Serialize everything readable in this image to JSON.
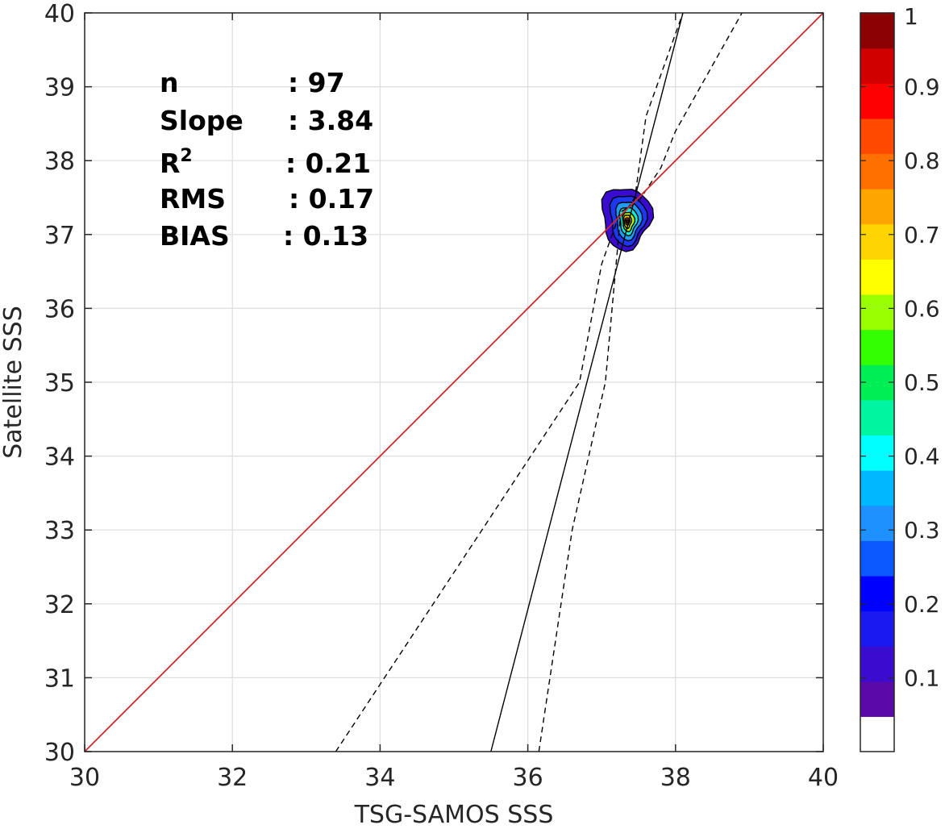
{
  "chart_data": {
    "type": "scatter",
    "subtype": "density-contour-with-regression",
    "title": "",
    "xlabel": "TSG-SAMOS SSS",
    "ylabel": "Satellite SSS",
    "xlim": [
      30,
      40
    ],
    "ylim": [
      30,
      40
    ],
    "xticks": [
      "30",
      "32",
      "34",
      "36",
      "38",
      "40"
    ],
    "yticks": [
      "30",
      "31",
      "32",
      "33",
      "34",
      "35",
      "36",
      "37",
      "38",
      "39",
      "40"
    ],
    "grid": true,
    "stats": [
      {
        "label": "n",
        "value": ": 97"
      },
      {
        "label": "Slope",
        "value": ": 3.84"
      },
      {
        "label": "R",
        "superscript": "2",
        "value": ": 0.21"
      },
      {
        "label": "RMS",
        "value": ": 0.17"
      },
      {
        "label": "BIAS",
        "value": ": 0.13"
      }
    ],
    "one_to_one_line": {
      "x": [
        30,
        40
      ],
      "y": [
        30,
        40
      ],
      "color": "#d62728"
    },
    "regression_line": {
      "x": [
        35.5,
        38.1
      ],
      "y": [
        30,
        40
      ],
      "color": "#000000"
    },
    "confidence_lower": {
      "x": [
        33.4,
        36.7,
        37.0,
        37.25,
        37.5,
        37.8,
        38.0,
        38.9
      ],
      "y": [
        30,
        35.0,
        36.6,
        37.3,
        37.45,
        37.9,
        38.4,
        40.0
      ],
      "dash": true
    },
    "confidence_upper": {
      "x": [
        36.15,
        36.6,
        37.05,
        37.25,
        37.45,
        37.6,
        38.1
      ],
      "y": [
        30,
        33.0,
        35.0,
        37.2,
        37.5,
        38.6,
        40.0
      ],
      "dash": true
    },
    "density_center": {
      "x": 37.35,
      "y": 37.18
    },
    "density_contours": [
      {
        "level": 0.1,
        "color": "#3a0ccf",
        "rx": 0.33,
        "ry": 0.42,
        "dx": -0.02,
        "dy": 0.05
      },
      {
        "level": 0.2,
        "color": "#1c38f0",
        "rx": 0.24,
        "ry": 0.34,
        "dx": 0.0,
        "dy": 0.03
      },
      {
        "level": 0.3,
        "color": "#1f9df5",
        "rx": 0.17,
        "ry": 0.26,
        "dx": 0.01,
        "dy": 0.02
      },
      {
        "level": 0.4,
        "color": "#16e6d2",
        "rx": 0.12,
        "ry": 0.19,
        "dx": 0.01,
        "dy": 0.01
      },
      {
        "level": 0.6,
        "color": "#b2f21f",
        "rx": 0.08,
        "ry": 0.13,
        "dx": 0.01,
        "dy": 0.0
      },
      {
        "level": 0.7,
        "color": "#ffd000",
        "rx": 0.05,
        "ry": 0.09,
        "dx": 0.0,
        "dy": 0.0
      },
      {
        "level": 0.85,
        "color": "#ff5a00",
        "rx": 0.03,
        "ry": 0.05,
        "dx": 0.0,
        "dy": 0.0
      },
      {
        "level": 1.0,
        "color": "#7a0000",
        "rx": 0.015,
        "ry": 0.025,
        "dx": 0.0,
        "dy": 0.0
      }
    ],
    "colorbar": {
      "range": [
        0,
        1
      ],
      "tick_labels": [
        "0.1",
        "0.2",
        "0.3",
        "0.4",
        "0.5",
        "0.6",
        "0.7",
        "0.8",
        "0.9",
        "1"
      ],
      "tick_values": [
        0.1,
        0.2,
        0.3,
        0.4,
        0.5,
        0.6,
        0.7,
        0.8,
        0.9,
        1.0
      ],
      "colors": [
        "#ffffff",
        "#5a0aa8",
        "#3a0ccf",
        "#1a1af0",
        "#0000ff",
        "#0a5aff",
        "#1e90ff",
        "#00b8ff",
        "#00ffff",
        "#00f5a0",
        "#00ee55",
        "#33ff00",
        "#99ff00",
        "#ffff00",
        "#ffd400",
        "#ffa500",
        "#ff7000",
        "#ff4a00",
        "#ff0000",
        "#d00000",
        "#8b0000"
      ]
    }
  }
}
